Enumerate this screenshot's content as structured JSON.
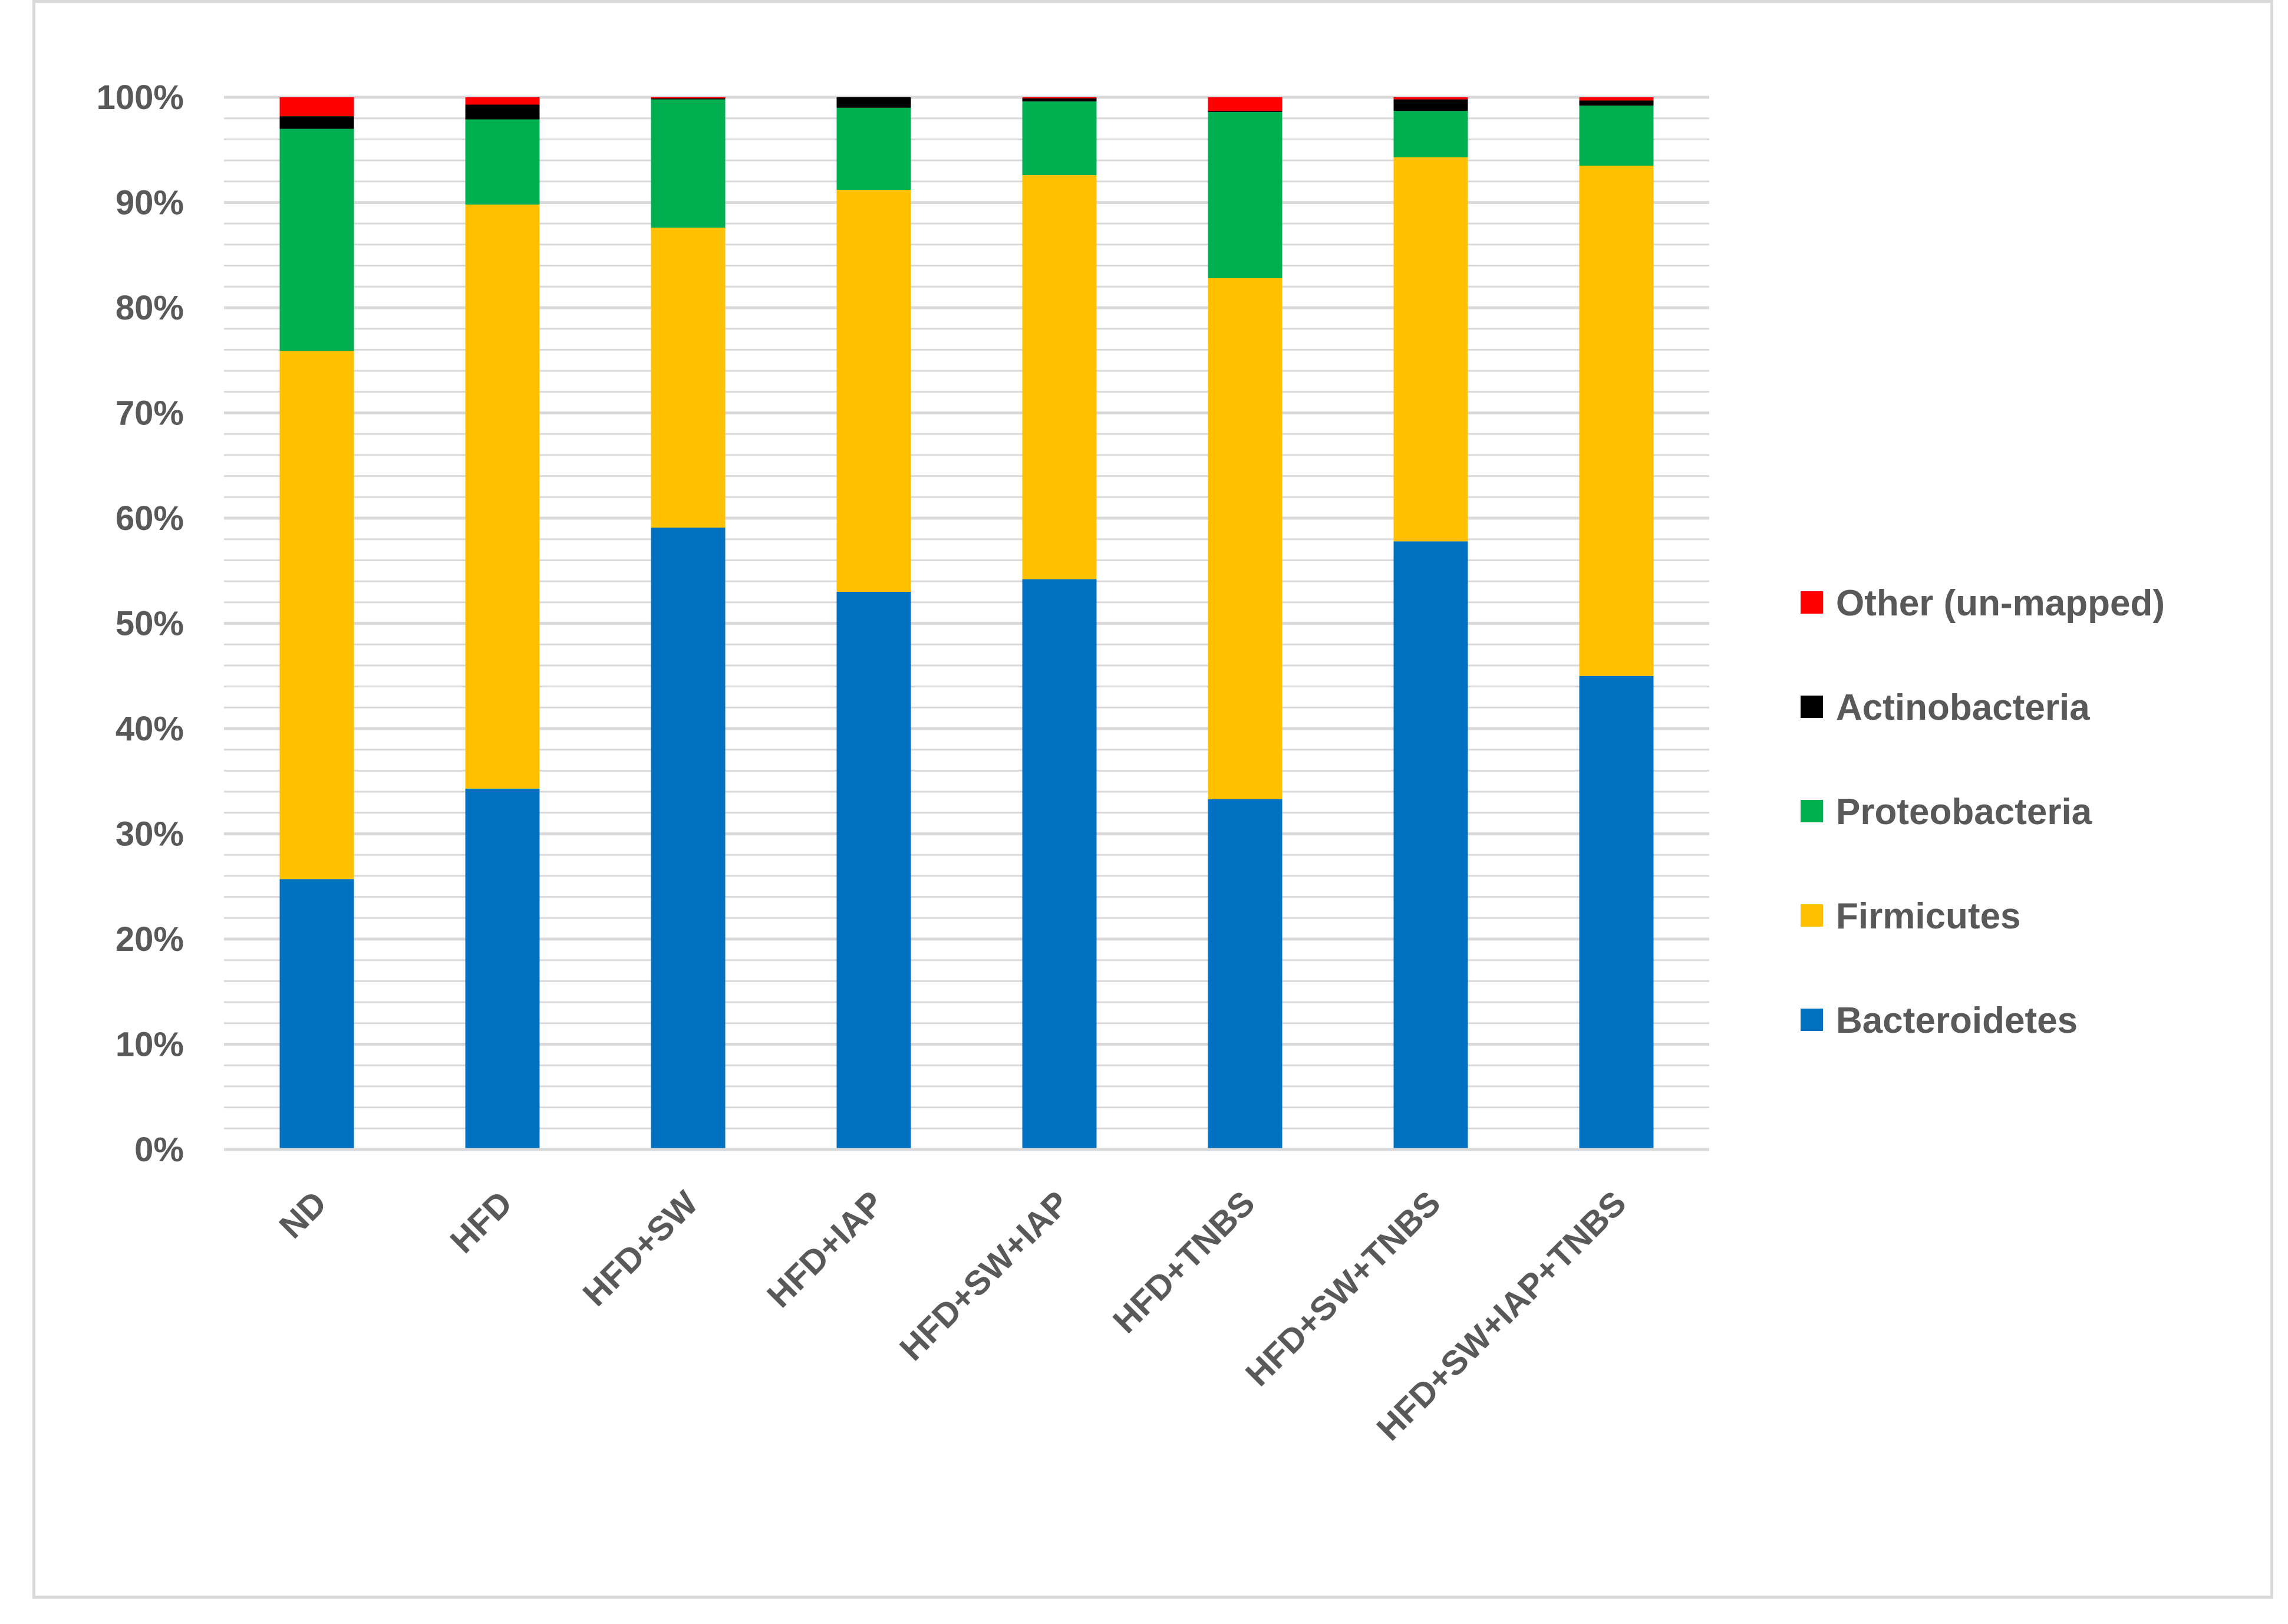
{
  "chart_data": {
    "type": "bar",
    "stacked": true,
    "percent": true,
    "title": "",
    "xlabel": "",
    "ylabel": "",
    "ylim": [
      0,
      100
    ],
    "yticks": [
      "0%",
      "10%",
      "20%",
      "30%",
      "40%",
      "50%",
      "60%",
      "70%",
      "80%",
      "90%",
      "100%"
    ],
    "categories": [
      "ND",
      "HFD",
      "HFD+SW",
      "HFD+IAP",
      "HFD+SW+IAP",
      "HFD+TNBS",
      "HFD+SW+TNBS",
      "HFD+SW+IAP+TNBS"
    ],
    "series": [
      {
        "name": "Bacteroidetes",
        "color": "#0070C0",
        "values": [
          25.7,
          34.3,
          59.1,
          53.0,
          54.2,
          33.3,
          57.8,
          45.0
        ]
      },
      {
        "name": "Firmicutes",
        "color": "#FFC000",
        "values": [
          50.2,
          55.5,
          28.5,
          38.2,
          38.4,
          49.5,
          36.5,
          48.5
        ]
      },
      {
        "name": "Proteobacteria",
        "color": "#00B050",
        "values": [
          21.1,
          8.1,
          12.2,
          7.8,
          7.0,
          15.8,
          4.4,
          5.7
        ]
      },
      {
        "name": "Actinobacteria",
        "color": "#000000",
        "values": [
          1.2,
          1.4,
          0.1,
          1.0,
          0.3,
          0.1,
          1.1,
          0.5
        ]
      },
      {
        "name": "Other (un-mapped)",
        "color": "#FF0000",
        "values": [
          1.8,
          0.7,
          0.1,
          0.0,
          0.1,
          1.3,
          0.2,
          0.3
        ]
      }
    ],
    "legend_position": "right",
    "legend_order": [
      "Other (un-mapped)",
      "Actinobacteria",
      "Proteobacteria",
      "Firmicutes",
      "Bacteroidetes"
    ],
    "grid": true
  }
}
